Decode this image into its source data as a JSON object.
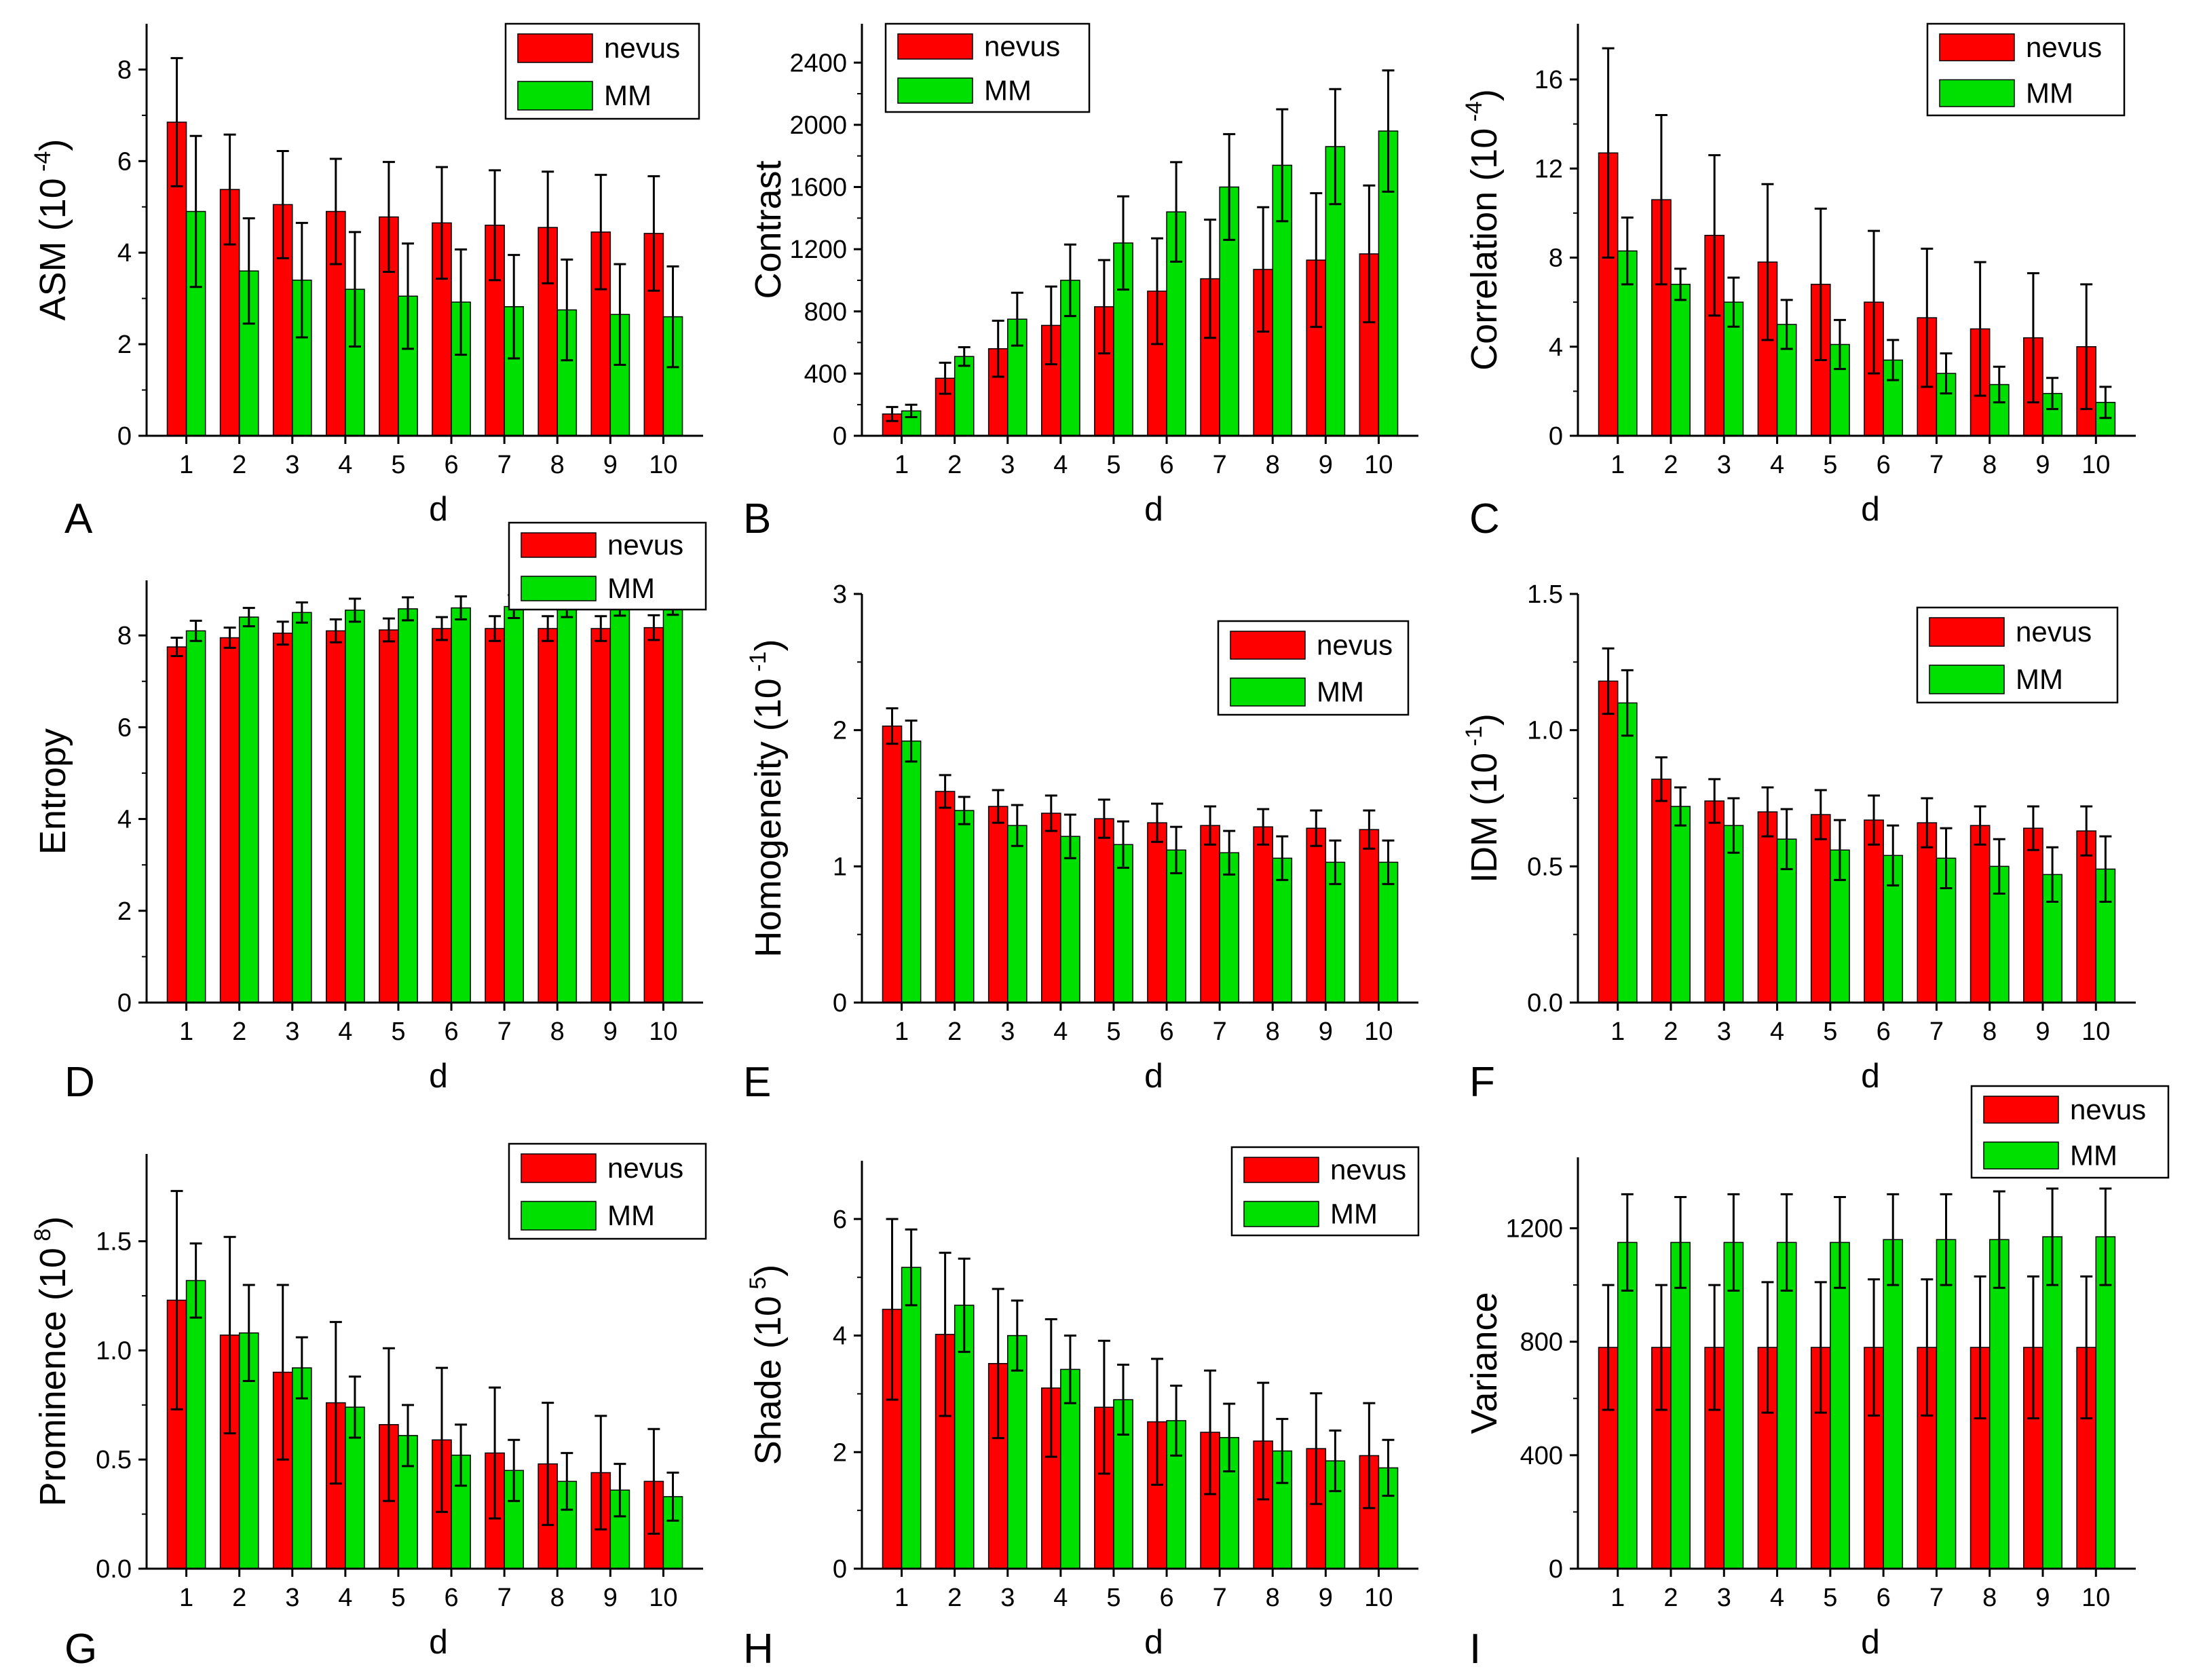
{
  "colors": {
    "nevus": "#ff0000",
    "MM": "#00e000",
    "error": "#000000"
  },
  "chart_data": [
    {
      "panel": "A",
      "type": "bar",
      "ylabel": "ASM",
      "exp": "-4",
      "xlabel": "d",
      "categories": [
        "1",
        "2",
        "3",
        "4",
        "5",
        "6",
        "7",
        "8",
        "9",
        "10"
      ],
      "ylim": [
        0,
        9
      ],
      "yticks": [
        "0",
        "2",
        "4",
        "6",
        "8"
      ],
      "ytick_values": [
        0,
        2,
        4,
        6,
        8
      ],
      "legend": {
        "position": "top-right",
        "labels": [
          "nevus",
          "MM"
        ]
      },
      "series": [
        {
          "name": "nevus",
          "values": [
            6.85,
            5.38,
            5.05,
            4.9,
            4.78,
            4.65,
            4.6,
            4.55,
            4.45,
            4.42
          ],
          "errors": [
            1.4,
            1.2,
            1.17,
            1.15,
            1.2,
            1.22,
            1.2,
            1.22,
            1.25,
            1.25
          ]
        },
        {
          "name": "MM",
          "values": [
            4.9,
            3.6,
            3.4,
            3.2,
            3.05,
            2.92,
            2.82,
            2.75,
            2.65,
            2.6
          ],
          "errors": [
            1.65,
            1.15,
            1.25,
            1.25,
            1.15,
            1.15,
            1.13,
            1.1,
            1.1,
            1.1
          ]
        }
      ]
    },
    {
      "panel": "B",
      "type": "bar",
      "ylabel": "Contrast",
      "exp": "",
      "xlabel": "d",
      "categories": [
        "1",
        "2",
        "3",
        "4",
        "5",
        "6",
        "7",
        "8",
        "9",
        "10"
      ],
      "ylim": [
        0,
        2650
      ],
      "yticks": [
        "0",
        "400",
        "800",
        "1200",
        "1600",
        "2000",
        "2400"
      ],
      "ytick_values": [
        0,
        400,
        800,
        1200,
        1600,
        2000,
        2400
      ],
      "legend": {
        "position": "top-left",
        "labels": [
          "nevus",
          "MM"
        ]
      },
      "series": [
        {
          "name": "nevus",
          "values": [
            140,
            370,
            560,
            710,
            830,
            930,
            1010,
            1070,
            1130,
            1170
          ],
          "errors": [
            45,
            100,
            180,
            250,
            300,
            340,
            380,
            400,
            430,
            440
          ]
        },
        {
          "name": "MM",
          "values": [
            160,
            510,
            750,
            1000,
            1240,
            1440,
            1600,
            1740,
            1860,
            1960
          ],
          "errors": [
            40,
            60,
            170,
            230,
            300,
            320,
            340,
            360,
            370,
            390
          ]
        }
      ]
    },
    {
      "panel": "C",
      "type": "bar",
      "ylabel": "Correlation",
      "exp": "-4",
      "xlabel": "d",
      "categories": [
        "1",
        "2",
        "3",
        "4",
        "5",
        "6",
        "7",
        "8",
        "9",
        "10"
      ],
      "ylim": [
        0,
        18.5
      ],
      "yticks": [
        "0",
        "4",
        "8",
        "12",
        "16"
      ],
      "ytick_values": [
        0,
        4,
        8,
        12,
        16
      ],
      "legend": {
        "position": "top-right",
        "labels": [
          "nevus",
          "MM"
        ]
      },
      "series": [
        {
          "name": "nevus",
          "values": [
            12.7,
            10.6,
            9.0,
            7.8,
            6.8,
            6.0,
            5.3,
            4.8,
            4.4,
            4.0
          ],
          "errors": [
            4.7,
            3.8,
            3.6,
            3.5,
            3.4,
            3.2,
            3.1,
            3.0,
            2.9,
            2.8
          ]
        },
        {
          "name": "MM",
          "values": [
            8.3,
            6.8,
            6.0,
            5.0,
            4.1,
            3.4,
            2.8,
            2.3,
            1.9,
            1.5
          ],
          "errors": [
            1.5,
            0.7,
            1.1,
            1.1,
            1.1,
            0.9,
            0.9,
            0.8,
            0.7,
            0.7
          ]
        }
      ]
    },
    {
      "panel": "D",
      "type": "bar",
      "ylabel": "Entropy",
      "exp": "",
      "xlabel": "d",
      "categories": [
        "1",
        "2",
        "3",
        "4",
        "5",
        "6",
        "7",
        "8",
        "9",
        "10"
      ],
      "ylim": [
        0,
        9.2
      ],
      "yticks": [
        "0",
        "2",
        "4",
        "6",
        "8"
      ],
      "ytick_values": [
        0,
        2,
        4,
        6,
        8
      ],
      "legend": {
        "position": "top-right",
        "labels": [
          "nevus",
          "MM"
        ]
      },
      "series": [
        {
          "name": "nevus",
          "values": [
            7.75,
            7.95,
            8.05,
            8.1,
            8.12,
            8.15,
            8.15,
            8.15,
            8.15,
            8.17
          ],
          "errors": [
            0.2,
            0.22,
            0.25,
            0.25,
            0.25,
            0.25,
            0.27,
            0.27,
            0.27,
            0.27
          ]
        },
        {
          "name": "MM",
          "values": [
            8.1,
            8.4,
            8.5,
            8.55,
            8.58,
            8.6,
            8.63,
            8.65,
            8.68,
            8.7
          ],
          "errors": [
            0.22,
            0.2,
            0.22,
            0.25,
            0.25,
            0.25,
            0.25,
            0.25,
            0.25,
            0.25
          ]
        }
      ]
    },
    {
      "panel": "E",
      "type": "bar",
      "ylabel": "Homogeneity",
      "exp": "-1",
      "xlabel": "d",
      "categories": [
        "1",
        "2",
        "3",
        "4",
        "5",
        "6",
        "7",
        "8",
        "9",
        "10"
      ],
      "ylim": [
        0,
        3
      ],
      "yticks": [
        "0",
        "1",
        "2",
        "3"
      ],
      "ytick_values": [
        0,
        1,
        2,
        3
      ],
      "legend": {
        "position": "right",
        "labels": [
          "nevus",
          "MM"
        ]
      },
      "series": [
        {
          "name": "nevus",
          "values": [
            2.03,
            1.55,
            1.44,
            1.39,
            1.35,
            1.32,
            1.3,
            1.29,
            1.28,
            1.27
          ],
          "errors": [
            0.13,
            0.12,
            0.12,
            0.13,
            0.14,
            0.14,
            0.14,
            0.13,
            0.13,
            0.14
          ]
        },
        {
          "name": "MM",
          "values": [
            1.92,
            1.41,
            1.3,
            1.22,
            1.16,
            1.12,
            1.1,
            1.06,
            1.03,
            1.03
          ],
          "errors": [
            0.15,
            0.1,
            0.15,
            0.16,
            0.17,
            0.17,
            0.16,
            0.16,
            0.16,
            0.16
          ]
        }
      ]
    },
    {
      "panel": "F",
      "type": "bar",
      "ylabel": "IDM",
      "exp": "-1",
      "xlabel": "d",
      "categories": [
        "1",
        "2",
        "3",
        "4",
        "5",
        "6",
        "7",
        "8",
        "9",
        "10"
      ],
      "ylim": [
        0,
        1.5
      ],
      "yticks": [
        "0.0",
        "0.5",
        "1.0",
        "1.5"
      ],
      "ytick_values": [
        0,
        0.5,
        1.0,
        1.5
      ],
      "legend": {
        "position": "top-right",
        "labels": [
          "nevus",
          "MM"
        ]
      },
      "series": [
        {
          "name": "nevus",
          "values": [
            1.18,
            0.82,
            0.74,
            0.7,
            0.69,
            0.67,
            0.66,
            0.65,
            0.64,
            0.63
          ],
          "errors": [
            0.12,
            0.08,
            0.08,
            0.09,
            0.09,
            0.09,
            0.09,
            0.07,
            0.08,
            0.09
          ]
        },
        {
          "name": "MM",
          "values": [
            1.1,
            0.72,
            0.65,
            0.6,
            0.56,
            0.54,
            0.53,
            0.5,
            0.47,
            0.49
          ],
          "errors": [
            0.12,
            0.07,
            0.1,
            0.11,
            0.11,
            0.11,
            0.11,
            0.1,
            0.1,
            0.12
          ]
        }
      ]
    },
    {
      "panel": "G",
      "type": "bar",
      "ylabel": "Prominence",
      "exp": "8",
      "xlabel": "d",
      "categories": [
        "1",
        "2",
        "3",
        "4",
        "5",
        "6",
        "7",
        "8",
        "9",
        "10"
      ],
      "ylim": [
        0,
        1.9
      ],
      "yticks": [
        "0.0",
        "0.5",
        "1.0",
        "1.5"
      ],
      "ytick_values": [
        0,
        0.5,
        1.0,
        1.5
      ],
      "legend": {
        "position": "top-right",
        "labels": [
          "nevus",
          "MM"
        ]
      },
      "series": [
        {
          "name": "nevus",
          "values": [
            1.23,
            1.07,
            0.9,
            0.76,
            0.66,
            0.59,
            0.53,
            0.48,
            0.44,
            0.4
          ],
          "errors": [
            0.5,
            0.45,
            0.4,
            0.37,
            0.35,
            0.33,
            0.3,
            0.28,
            0.26,
            0.24
          ]
        },
        {
          "name": "MM",
          "values": [
            1.32,
            1.08,
            0.92,
            0.74,
            0.61,
            0.52,
            0.45,
            0.4,
            0.36,
            0.33
          ],
          "errors": [
            0.17,
            0.22,
            0.14,
            0.14,
            0.14,
            0.14,
            0.14,
            0.13,
            0.12,
            0.11
          ]
        }
      ]
    },
    {
      "panel": "H",
      "type": "bar",
      "ylabel": "Shade",
      "exp": "5",
      "xlabel": "d",
      "categories": [
        "1",
        "2",
        "3",
        "4",
        "5",
        "6",
        "7",
        "8",
        "9",
        "10"
      ],
      "ylim": [
        0,
        7
      ],
      "yticks": [
        "0",
        "2",
        "4",
        "6"
      ],
      "ytick_values": [
        0,
        2,
        4,
        6
      ],
      "legend": {
        "position": "top-right",
        "labels": [
          "nevus",
          "MM"
        ]
      },
      "series": [
        {
          "name": "nevus",
          "values": [
            4.45,
            4.02,
            3.52,
            3.1,
            2.77,
            2.52,
            2.34,
            2.19,
            2.06,
            1.94
          ],
          "errors": [
            1.55,
            1.4,
            1.28,
            1.18,
            1.14,
            1.08,
            1.06,
            1.0,
            0.95,
            0.9
          ]
        },
        {
          "name": "MM",
          "values": [
            5.17,
            4.52,
            4.0,
            3.42,
            2.9,
            2.54,
            2.25,
            2.02,
            1.85,
            1.73
          ],
          "errors": [
            0.65,
            0.8,
            0.6,
            0.58,
            0.6,
            0.6,
            0.58,
            0.55,
            0.52,
            0.48
          ]
        }
      ]
    },
    {
      "panel": "I",
      "type": "bar",
      "ylabel": "Variance",
      "exp": "",
      "xlabel": "d",
      "categories": [
        "1",
        "2",
        "3",
        "4",
        "5",
        "6",
        "7",
        "8",
        "9",
        "10"
      ],
      "ylim": [
        0,
        1450
      ],
      "yticks": [
        "0",
        "400",
        "800",
        "1200"
      ],
      "ytick_values": [
        0,
        400,
        800,
        1200
      ],
      "legend": {
        "position": "top-right",
        "labels": [
          "nevus",
          "MM"
        ]
      },
      "series": [
        {
          "name": "nevus",
          "values": [
            780,
            780,
            780,
            780,
            780,
            780,
            780,
            780,
            780,
            780
          ],
          "errors": [
            220,
            220,
            220,
            230,
            230,
            240,
            240,
            250,
            250,
            250
          ]
        },
        {
          "name": "MM",
          "values": [
            1150,
            1150,
            1150,
            1150,
            1150,
            1160,
            1160,
            1160,
            1170,
            1170
          ],
          "errors": [
            170,
            160,
            170,
            170,
            160,
            160,
            160,
            170,
            170,
            170
          ]
        }
      ]
    }
  ]
}
